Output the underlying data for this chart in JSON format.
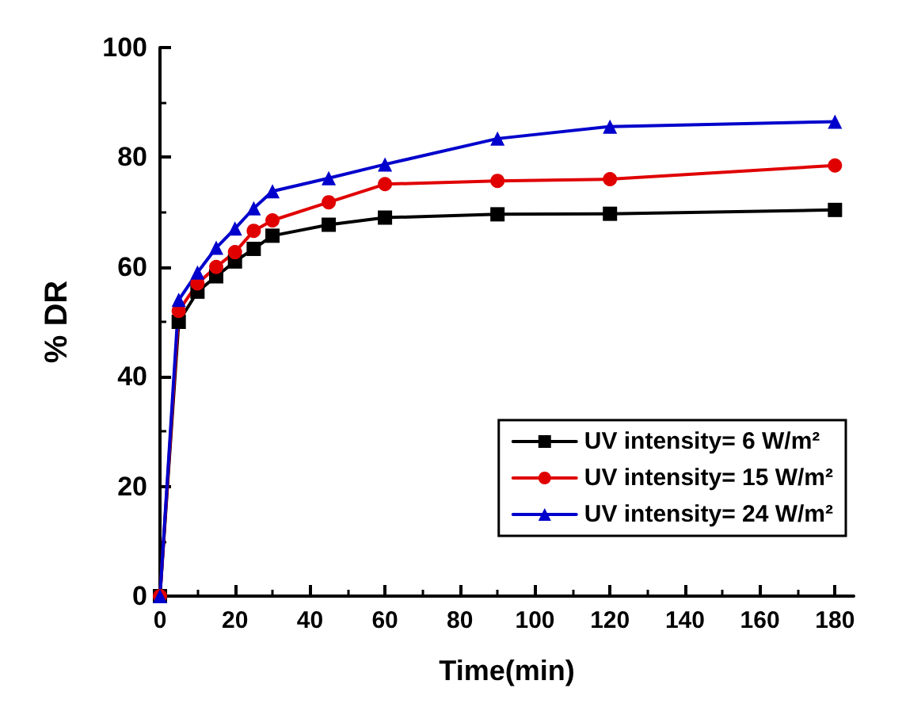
{
  "chart_data": {
    "type": "line",
    "xlabel": "Time(min)",
    "ylabel": "% DR",
    "x": [
      0,
      5,
      10,
      15,
      20,
      25,
      30,
      45,
      60,
      90,
      120,
      180
    ],
    "series": [
      {
        "name": "UV intensity= 6 W/m²",
        "color": "#000000",
        "marker": "square",
        "values": [
          0,
          50,
          55.5,
          58.3,
          61,
          63.3,
          65.7,
          67.7,
          69,
          69.6,
          69.7,
          70.4
        ]
      },
      {
        "name": "UV intensity= 15 W/m²",
        "color": "#e00000",
        "marker": "circle",
        "values": [
          0,
          52,
          57,
          60,
          62.7,
          66.6,
          68.5,
          71.8,
          75.1,
          75.7,
          76,
          78.5
        ]
      },
      {
        "name": "UV intensity= 24 W/m²",
        "color": "#0000cc",
        "marker": "triangle",
        "values": [
          0,
          54,
          59,
          63.5,
          67,
          70.7,
          73.8,
          76.2,
          78.7,
          83.4,
          85.6,
          86.5
        ]
      }
    ],
    "xlim": [
      0,
      185
    ],
    "xticks": [
      0,
      20,
      40,
      60,
      80,
      100,
      120,
      140,
      160,
      180
    ],
    "ylim": [
      0,
      100
    ],
    "yticks": [
      0,
      20,
      40,
      60,
      80,
      100
    ],
    "grid": false,
    "legend": "bottom right",
    "line_style": "solid"
  }
}
